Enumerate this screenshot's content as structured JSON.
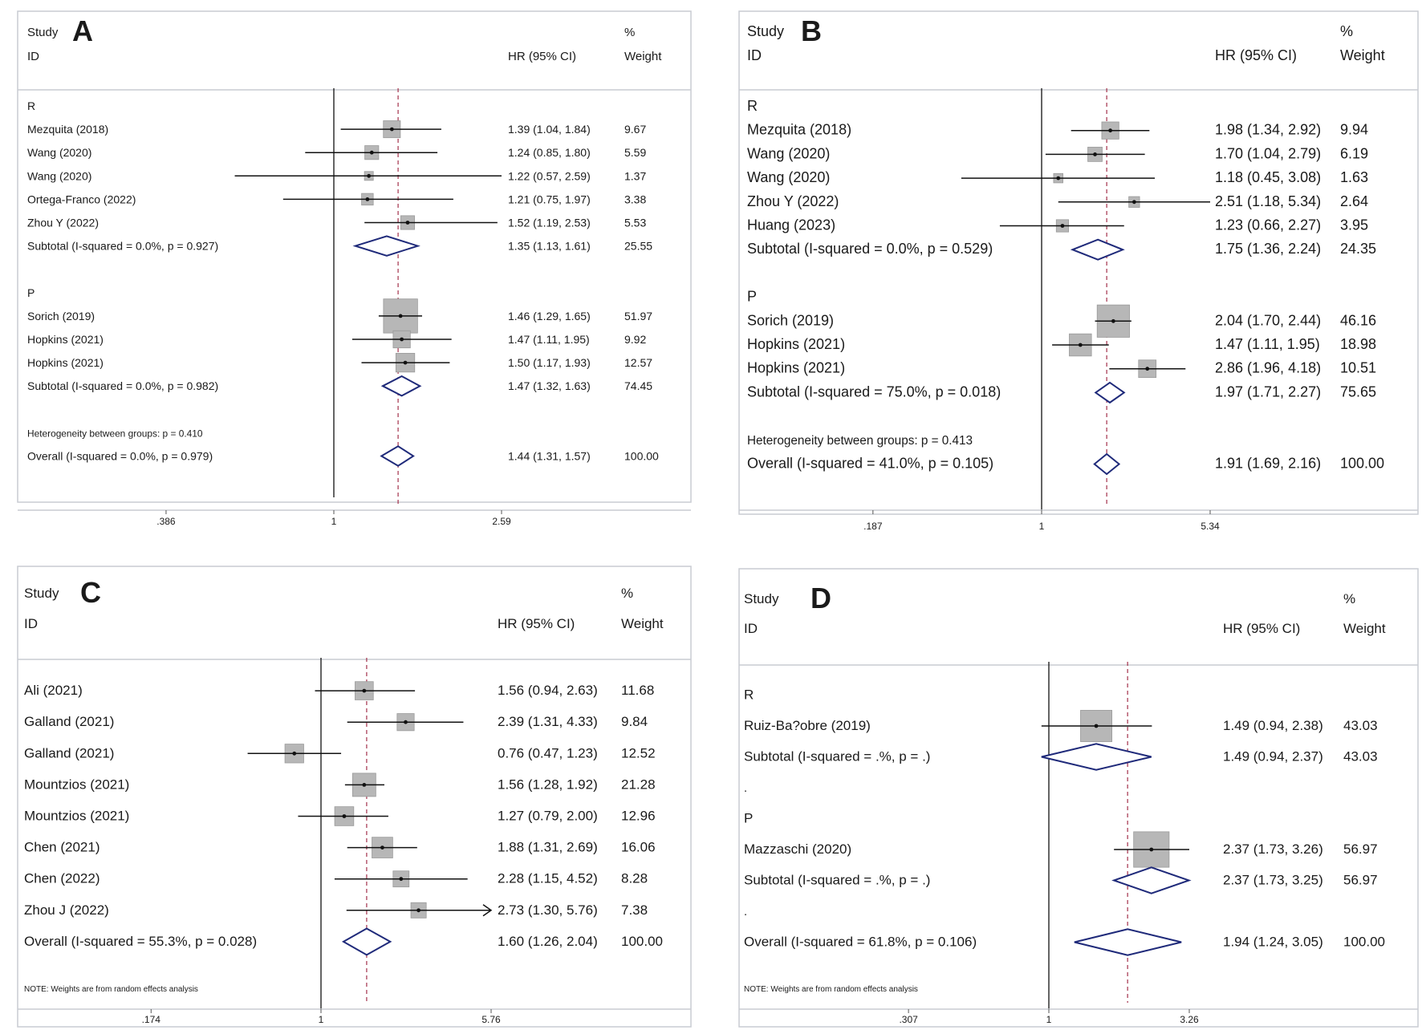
{
  "chart_data": [
    {
      "type": "forest",
      "panel": "A",
      "header": {
        "study": "Study",
        "id": "ID",
        "hr": "HR (95% CI)",
        "pct": "%",
        "weight": "Weight"
      },
      "scale": "log",
      "ticks": [
        {
          "v": 0.386,
          "label": ".386"
        },
        {
          "v": 1,
          "label": "1"
        },
        {
          "v": 2.59,
          "label": "2.59"
        }
      ],
      "overall_line": 1.44,
      "rows": [
        {
          "kind": "group",
          "label": "R"
        },
        {
          "kind": "study",
          "label": "Mezquita (2018)",
          "hr": 1.39,
          "lo": 1.04,
          "hi": 1.84,
          "ci": "1.39 (1.04, 1.84)",
          "weight": "9.67"
        },
        {
          "kind": "study",
          "label": "Wang (2020)",
          "hr": 1.24,
          "lo": 0.85,
          "hi": 1.8,
          "ci": "1.24 (0.85, 1.80)",
          "weight": "5.59"
        },
        {
          "kind": "study",
          "label": "Wang (2020)",
          "hr": 1.22,
          "lo": 0.57,
          "hi": 2.59,
          "ci": "1.22 (0.57, 2.59)",
          "weight": "1.37"
        },
        {
          "kind": "study",
          "label": "Ortega-Franco (2022)",
          "hr": 1.21,
          "lo": 0.75,
          "hi": 1.97,
          "ci": "1.21 (0.75, 1.97)",
          "weight": "3.38"
        },
        {
          "kind": "study",
          "label": "Zhou Y (2022)",
          "hr": 1.52,
          "lo": 1.19,
          "hi": 2.53,
          "ci": "1.52 (1.19, 2.53)",
          "weight": "5.53"
        },
        {
          "kind": "subtotal",
          "label": "Subtotal  (I-squared = 0.0%, p = 0.927)",
          "hr": 1.35,
          "lo": 1.13,
          "hi": 1.61,
          "ci": "1.35 (1.13, 1.61)",
          "weight": "25.55"
        },
        {
          "kind": "blank"
        },
        {
          "kind": "group",
          "label": "P"
        },
        {
          "kind": "study",
          "label": "Sorich (2019)",
          "hr": 1.46,
          "lo": 1.29,
          "hi": 1.65,
          "ci": "1.46 (1.29, 1.65)",
          "weight": "51.97"
        },
        {
          "kind": "study",
          "label": "Hopkins (2021)",
          "hr": 1.47,
          "lo": 1.11,
          "hi": 1.95,
          "ci": "1.47 (1.11, 1.95)",
          "weight": "9.92"
        },
        {
          "kind": "study",
          "label": "Hopkins (2021)",
          "hr": 1.5,
          "lo": 1.17,
          "hi": 1.93,
          "ci": "1.50 (1.17, 1.93)",
          "weight": "12.57"
        },
        {
          "kind": "subtotal",
          "label": "Subtotal  (I-squared = 0.0%, p = 0.982)",
          "hr": 1.47,
          "lo": 1.32,
          "hi": 1.63,
          "ci": "1.47 (1.32, 1.63)",
          "weight": "74.45"
        },
        {
          "kind": "blank"
        },
        {
          "kind": "note",
          "label": "Heterogeneity between groups: p = 0.410"
        },
        {
          "kind": "subtotal",
          "label": "Overall  (I-squared = 0.0%, p = 0.979)",
          "hr": 1.44,
          "lo": 1.31,
          "hi": 1.57,
          "ci": "1.44 (1.31, 1.57)",
          "weight": "100.00"
        }
      ],
      "footnote": ""
    },
    {
      "type": "forest",
      "panel": "B",
      "header": {
        "study": "Study",
        "id": "ID",
        "hr": "HR (95% CI)",
        "pct": "%",
        "weight": "Weight"
      },
      "scale": "log",
      "ticks": [
        {
          "v": 0.187,
          "label": ".187"
        },
        {
          "v": 1,
          "label": "1"
        },
        {
          "v": 5.34,
          "label": "5.34"
        }
      ],
      "overall_line": 1.91,
      "rows": [
        {
          "kind": "group",
          "label": "R"
        },
        {
          "kind": "study",
          "label": "Mezquita (2018)",
          "hr": 1.98,
          "lo": 1.34,
          "hi": 2.92,
          "ci": "1.98 (1.34, 2.92)",
          "weight": "9.94"
        },
        {
          "kind": "study",
          "label": "Wang (2020)",
          "hr": 1.7,
          "lo": 1.04,
          "hi": 2.79,
          "ci": "1.70 (1.04, 2.79)",
          "weight": "6.19"
        },
        {
          "kind": "study",
          "label": "Wang (2020)",
          "hr": 1.18,
          "lo": 0.45,
          "hi": 3.08,
          "ci": "1.18 (0.45, 3.08)",
          "weight": "1.63"
        },
        {
          "kind": "study",
          "label": "Zhou Y (2022)",
          "hr": 2.51,
          "lo": 1.18,
          "hi": 5.34,
          "ci": "2.51 (1.18, 5.34)",
          "weight": "2.64"
        },
        {
          "kind": "study",
          "label": "Huang (2023)",
          "hr": 1.23,
          "lo": 0.66,
          "hi": 2.27,
          "ci": "1.23 (0.66, 2.27)",
          "weight": "3.95"
        },
        {
          "kind": "subtotal",
          "label": "Subtotal  (I-squared = 0.0%, p = 0.529)",
          "hr": 1.75,
          "lo": 1.36,
          "hi": 2.24,
          "ci": "1.75 (1.36, 2.24)",
          "weight": "24.35"
        },
        {
          "kind": "blank"
        },
        {
          "kind": "group",
          "label": "P"
        },
        {
          "kind": "study",
          "label": "Sorich (2019)",
          "hr": 2.04,
          "lo": 1.7,
          "hi": 2.44,
          "ci": "2.04 (1.70, 2.44)",
          "weight": "46.16"
        },
        {
          "kind": "study",
          "label": "Hopkins (2021)",
          "hr": 1.47,
          "lo": 1.11,
          "hi": 1.95,
          "ci": "1.47 (1.11, 1.95)",
          "weight": "18.98"
        },
        {
          "kind": "study",
          "label": "Hopkins (2021)",
          "hr": 2.86,
          "lo": 1.96,
          "hi": 4.18,
          "ci": "2.86 (1.96, 4.18)",
          "weight": "10.51"
        },
        {
          "kind": "subtotal",
          "label": "Subtotal  (I-squared = 75.0%, p = 0.018)",
          "hr": 1.97,
          "lo": 1.71,
          "hi": 2.27,
          "ci": "1.97 (1.71, 2.27)",
          "weight": "75.65"
        },
        {
          "kind": "blank"
        },
        {
          "kind": "note",
          "label": "Heterogeneity between groups: p = 0.413"
        },
        {
          "kind": "subtotal",
          "label": "Overall  (I-squared = 41.0%, p = 0.105)",
          "hr": 1.91,
          "lo": 1.69,
          "hi": 2.16,
          "ci": "1.91 (1.69, 2.16)",
          "weight": "100.00"
        }
      ],
      "footnote": ""
    },
    {
      "type": "forest",
      "panel": "C",
      "header": {
        "study": "Study",
        "id": "ID",
        "hr": "HR (95% CI)",
        "pct": "%",
        "weight": "Weight"
      },
      "scale": "log",
      "ticks": [
        {
          "v": 0.174,
          "label": ".174"
        },
        {
          "v": 1,
          "label": "1"
        },
        {
          "v": 5.76,
          "label": "5.76"
        }
      ],
      "overall_line": 1.6,
      "rows": [
        {
          "kind": "blank"
        },
        {
          "kind": "study",
          "label": "Ali (2021)",
          "hr": 1.56,
          "lo": 0.94,
          "hi": 2.63,
          "ci": "1.56 (0.94, 2.63)",
          "weight": "11.68"
        },
        {
          "kind": "study",
          "label": "Galland (2021)",
          "hr": 2.39,
          "lo": 1.31,
          "hi": 4.33,
          "ci": "2.39 (1.31, 4.33)",
          "weight": "9.84"
        },
        {
          "kind": "study",
          "label": "Galland (2021)",
          "hr": 0.76,
          "lo": 0.47,
          "hi": 1.23,
          "ci": "0.76 (0.47, 1.23)",
          "weight": "12.52"
        },
        {
          "kind": "study",
          "label": "Mountzios (2021)",
          "hr": 1.56,
          "lo": 1.28,
          "hi": 1.92,
          "ci": "1.56 (1.28, 1.92)",
          "weight": "21.28"
        },
        {
          "kind": "study",
          "label": "Mountzios (2021)",
          "hr": 1.27,
          "lo": 0.79,
          "hi": 2.0,
          "ci": "1.27 (0.79, 2.00)",
          "weight": "12.96"
        },
        {
          "kind": "study",
          "label": "Chen (2021)",
          "hr": 1.88,
          "lo": 1.31,
          "hi": 2.69,
          "ci": "1.88 (1.31, 2.69)",
          "weight": "16.06"
        },
        {
          "kind": "study",
          "label": "Chen (2022)",
          "hr": 2.28,
          "lo": 1.15,
          "hi": 4.52,
          "ci": "2.28 (1.15, 4.52)",
          "weight": "8.28"
        },
        {
          "kind": "study",
          "label": "Zhou J (2022)",
          "hr": 2.73,
          "lo": 1.3,
          "hi": 5.76,
          "ci": "2.73 (1.30, 5.76)",
          "weight": "7.38",
          "arrow": true
        },
        {
          "kind": "subtotal",
          "label": "Overall  (I-squared = 55.3%, p = 0.028)",
          "hr": 1.6,
          "lo": 1.26,
          "hi": 2.04,
          "ci": "1.60 (1.26, 2.04)",
          "weight": "100.00"
        }
      ],
      "footnote": "NOTE: Weights are from random effects analysis"
    },
    {
      "type": "forest",
      "panel": "D",
      "header": {
        "study": "Study",
        "id": "ID",
        "hr": "HR (95% CI)",
        "pct": "%",
        "weight": "Weight"
      },
      "scale": "log",
      "ticks": [
        {
          "v": 0.307,
          "label": ".307"
        },
        {
          "v": 1,
          "label": "1"
        },
        {
          "v": 3.26,
          "label": "3.26"
        }
      ],
      "overall_line": 1.94,
      "rows": [
        {
          "kind": "blank"
        },
        {
          "kind": "group",
          "label": "R"
        },
        {
          "kind": "study",
          "label": "Ruiz-Ba?obre (2019)",
          "hr": 1.49,
          "lo": 0.94,
          "hi": 2.38,
          "ci": "1.49 (0.94, 2.38)",
          "weight": "43.03"
        },
        {
          "kind": "subtotal",
          "label": "Subtotal  (I-squared = .%, p = .)",
          "hr": 1.49,
          "lo": 0.94,
          "hi": 2.37,
          "ci": "1.49 (0.94, 2.37)",
          "weight": "43.03"
        },
        {
          "kind": "note",
          "label": "."
        },
        {
          "kind": "group",
          "label": "P"
        },
        {
          "kind": "study",
          "label": "Mazzaschi (2020)",
          "hr": 2.37,
          "lo": 1.73,
          "hi": 3.26,
          "ci": "2.37 (1.73, 3.26)",
          "weight": "56.97"
        },
        {
          "kind": "subtotal",
          "label": "Subtotal  (I-squared = .%, p = .)",
          "hr": 2.37,
          "lo": 1.73,
          "hi": 3.25,
          "ci": "2.37 (1.73, 3.25)",
          "weight": "56.97"
        },
        {
          "kind": "note",
          "label": "."
        },
        {
          "kind": "subtotal",
          "label": "Overall  (I-squared = 61.8%, p = 0.106)",
          "hr": 1.94,
          "lo": 1.24,
          "hi": 3.05,
          "ci": "1.94 (1.24, 3.05)",
          "weight": "100.00"
        }
      ],
      "footnote": "NOTE: Weights are from random effects analysis"
    }
  ]
}
